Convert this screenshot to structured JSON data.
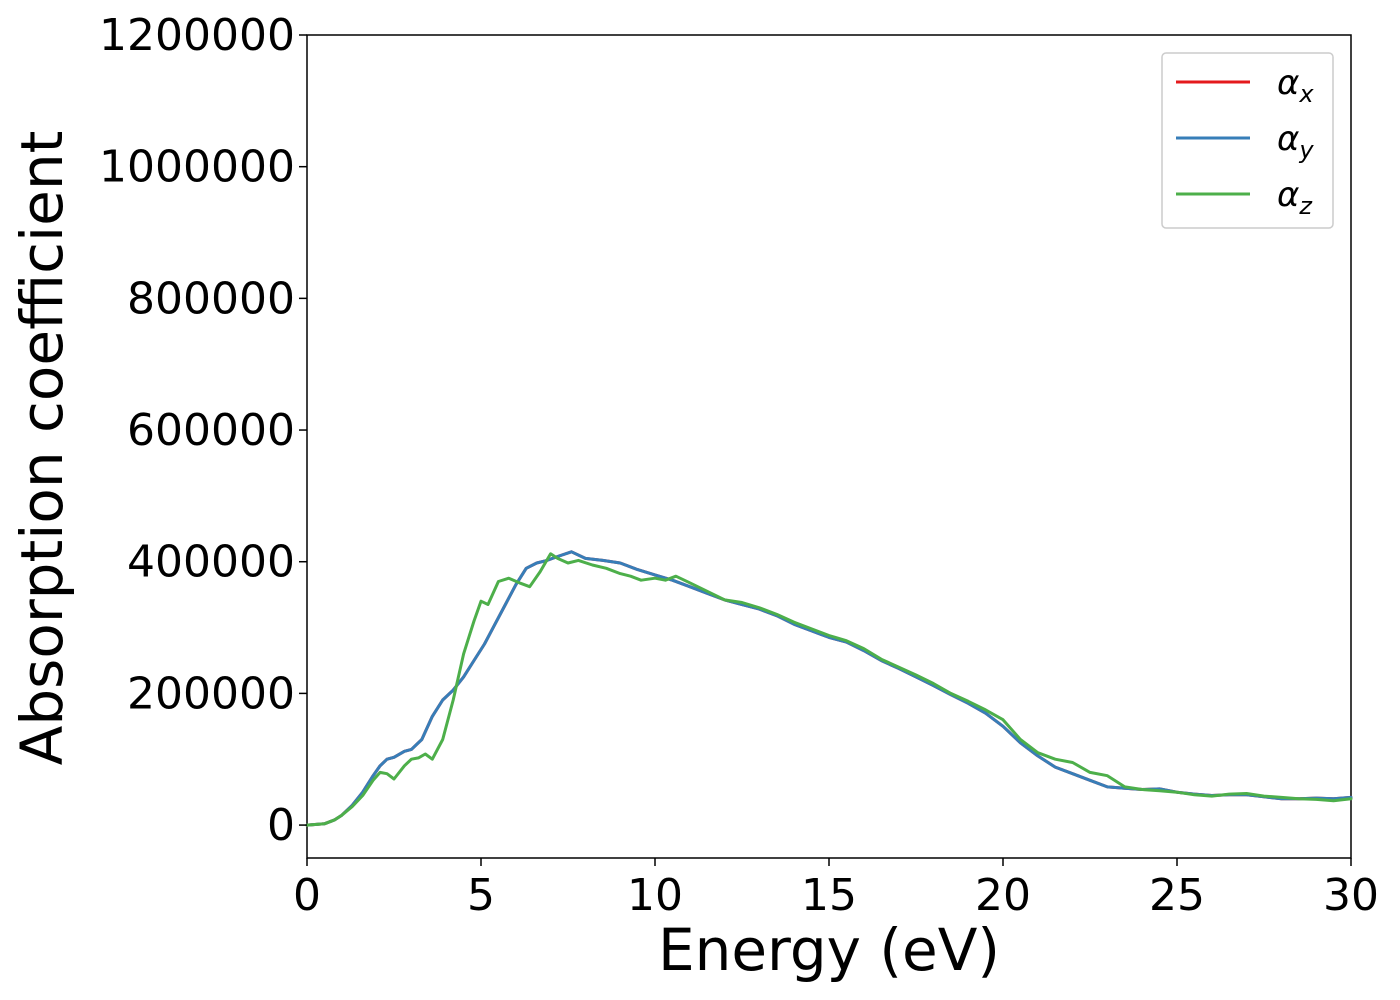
{
  "chart_data": {
    "type": "line",
    "title": "",
    "xlabel": "Energy (eV)",
    "ylabel": "Absorption coefficient",
    "xlim": [
      0,
      30
    ],
    "ylim": [
      -50000,
      1200000
    ],
    "xticks": [
      0,
      5,
      10,
      15,
      20,
      25,
      30
    ],
    "xtick_labels": [
      "0",
      "5",
      "10",
      "15",
      "20",
      "25",
      "30"
    ],
    "yticks": [
      0,
      200000,
      400000,
      600000,
      800000,
      1000000,
      1200000
    ],
    "ytick_labels": [
      "0",
      "200000",
      "400000",
      "600000",
      "800000",
      "1000000",
      "1200000"
    ],
    "grid": false,
    "legend_position": "top-right",
    "series": [
      {
        "name": "αx",
        "base": "α",
        "sub": "x",
        "color": "#e41a1c",
        "x": [
          0,
          0.5,
          0.8,
          1.0,
          1.3,
          1.6,
          1.9,
          2.1,
          2.3,
          2.5,
          2.8,
          3.0,
          3.3,
          3.6,
          3.9,
          4.2,
          4.5,
          4.8,
          5.1,
          5.4,
          5.7,
          6.0,
          6.3,
          6.6,
          6.9,
          7.2,
          7.6,
          8.0,
          8.5,
          9.0,
          9.5,
          10.0,
          10.5,
          11.0,
          11.5,
          12.0,
          12.5,
          13.0,
          13.5,
          14.0,
          14.5,
          15.0,
          15.5,
          16.0,
          16.5,
          17.0,
          17.5,
          18.0,
          18.5,
          19.0,
          19.5,
          20.0,
          20.5,
          21.0,
          21.5,
          22.0,
          22.5,
          23.0,
          23.5,
          24.0,
          24.5,
          25.0,
          25.5,
          26.0,
          26.5,
          27.0,
          27.5,
          28.0,
          28.5,
          29.0,
          29.5,
          30.0
        ],
        "y": [
          0,
          2000,
          8000,
          15000,
          30000,
          50000,
          75000,
          90000,
          100000,
          103000,
          112000,
          115000,
          130000,
          165000,
          190000,
          205000,
          225000,
          250000,
          275000,
          305000,
          335000,
          365000,
          390000,
          398000,
          402000,
          408000,
          415000,
          405000,
          402000,
          398000,
          388000,
          380000,
          372000,
          362000,
          352000,
          342000,
          335000,
          328000,
          318000,
          305000,
          295000,
          285000,
          278000,
          265000,
          250000,
          238000,
          225000,
          212000,
          198000,
          185000,
          170000,
          150000,
          125000,
          105000,
          88000,
          78000,
          68000,
          58000,
          56000,
          54000,
          55000,
          50000,
          47000,
          45000,
          46000,
          46000,
          43000,
          40000,
          40000,
          41000,
          40000,
          42000
        ]
      },
      {
        "name": "αy",
        "base": "α",
        "sub": "y",
        "color": "#377eb8",
        "x": [
          0,
          0.5,
          0.8,
          1.0,
          1.3,
          1.6,
          1.9,
          2.1,
          2.3,
          2.5,
          2.8,
          3.0,
          3.3,
          3.6,
          3.9,
          4.2,
          4.5,
          4.8,
          5.1,
          5.4,
          5.7,
          6.0,
          6.3,
          6.6,
          6.9,
          7.2,
          7.6,
          8.0,
          8.5,
          9.0,
          9.5,
          10.0,
          10.5,
          11.0,
          11.5,
          12.0,
          12.5,
          13.0,
          13.5,
          14.0,
          14.5,
          15.0,
          15.5,
          16.0,
          16.5,
          17.0,
          17.5,
          18.0,
          18.5,
          19.0,
          19.5,
          20.0,
          20.5,
          21.0,
          21.5,
          22.0,
          22.5,
          23.0,
          23.5,
          24.0,
          24.5,
          25.0,
          25.5,
          26.0,
          26.5,
          27.0,
          27.5,
          28.0,
          28.5,
          29.0,
          29.5,
          30.0
        ],
        "y": [
          0,
          2000,
          8000,
          15000,
          30000,
          50000,
          75000,
          90000,
          100000,
          103000,
          112000,
          115000,
          130000,
          165000,
          190000,
          205000,
          225000,
          250000,
          275000,
          305000,
          335000,
          365000,
          390000,
          398000,
          402000,
          408000,
          415000,
          405000,
          402000,
          398000,
          388000,
          380000,
          372000,
          362000,
          352000,
          342000,
          335000,
          328000,
          318000,
          305000,
          295000,
          285000,
          278000,
          265000,
          250000,
          238000,
          225000,
          212000,
          198000,
          185000,
          170000,
          150000,
          125000,
          105000,
          88000,
          78000,
          68000,
          58000,
          56000,
          54000,
          55000,
          50000,
          47000,
          45000,
          46000,
          46000,
          43000,
          40000,
          40000,
          41000,
          40000,
          42000
        ]
      },
      {
        "name": "αz",
        "base": "α",
        "sub": "z",
        "color": "#4daf4a",
        "x": [
          0,
          0.5,
          0.8,
          1.0,
          1.3,
          1.6,
          1.9,
          2.1,
          2.3,
          2.5,
          2.8,
          3.0,
          3.2,
          3.4,
          3.6,
          3.9,
          4.2,
          4.5,
          4.8,
          5.0,
          5.2,
          5.5,
          5.8,
          6.1,
          6.4,
          6.7,
          7.0,
          7.2,
          7.5,
          7.8,
          8.2,
          8.6,
          9.0,
          9.3,
          9.6,
          10.0,
          10.3,
          10.6,
          11.0,
          11.5,
          12.0,
          12.5,
          13.0,
          13.5,
          14.0,
          14.5,
          15.0,
          15.5,
          16.0,
          16.5,
          17.0,
          17.5,
          18.0,
          18.5,
          19.0,
          19.5,
          20.0,
          20.5,
          21.0,
          21.5,
          22.0,
          22.5,
          23.0,
          23.5,
          24.0,
          24.5,
          25.0,
          25.5,
          26.0,
          26.5,
          27.0,
          27.5,
          28.0,
          28.5,
          29.0,
          29.5,
          30.0
        ],
        "y": [
          0,
          2000,
          8000,
          15000,
          28000,
          45000,
          68000,
          80000,
          78000,
          70000,
          90000,
          100000,
          102000,
          108000,
          100000,
          130000,
          190000,
          260000,
          310000,
          340000,
          335000,
          370000,
          375000,
          368000,
          362000,
          385000,
          412000,
          405000,
          398000,
          402000,
          395000,
          390000,
          382000,
          378000,
          372000,
          375000,
          372000,
          378000,
          368000,
          355000,
          342000,
          338000,
          330000,
          320000,
          308000,
          298000,
          288000,
          280000,
          268000,
          252000,
          240000,
          228000,
          215000,
          200000,
          188000,
          175000,
          160000,
          130000,
          110000,
          100000,
          95000,
          80000,
          75000,
          58000,
          54000,
          52000,
          50000,
          46000,
          44000,
          47000,
          48000,
          44000,
          42000,
          40000,
          39000,
          37000,
          40000
        ]
      }
    ]
  }
}
